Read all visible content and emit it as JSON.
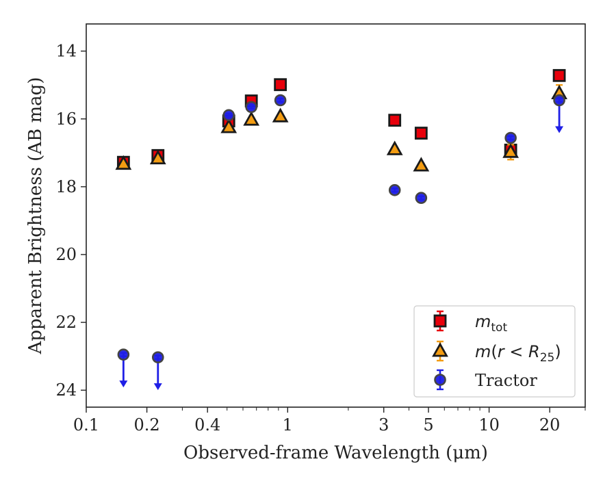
{
  "chart_data": {
    "type": "scatter",
    "xlabel": "Observed-frame Wavelength (μm)",
    "ylabel": "Apparent Brightness (AB mag)",
    "x_scale": "log",
    "xlim": [
      0.1,
      30
    ],
    "ylim": [
      24.5,
      13.2
    ],
    "y_inverted": true,
    "x_ticks": [
      0.1,
      0.2,
      0.4,
      1,
      3,
      5,
      10,
      20
    ],
    "x_tick_labels": [
      "0.1",
      "0.2",
      "0.4",
      "1",
      "3",
      "5",
      "10",
      "20"
    ],
    "y_ticks": [
      14,
      16,
      18,
      20,
      22,
      24
    ],
    "y_tick_labels": [
      "14",
      "16",
      "18",
      "20",
      "22",
      "24"
    ],
    "grid": false,
    "legend_position": "bottom-right",
    "series": [
      {
        "name": "m_tot",
        "legend_main": "m",
        "legend_sub": "tot",
        "marker": "square",
        "color": "#e8000b",
        "edge": "#1a1a1a",
        "points": [
          {
            "x": 0.153,
            "y": 17.28,
            "err": 0.05
          },
          {
            "x": 0.227,
            "y": 17.08,
            "err": 0.05
          },
          {
            "x": 0.51,
            "y": 16.06,
            "err": 0.08
          },
          {
            "x": 0.66,
            "y": 15.47,
            "err": 0.08
          },
          {
            "x": 0.92,
            "y": 14.99,
            "err": 0.05
          },
          {
            "x": 3.4,
            "y": 16.04,
            "err": 0.05
          },
          {
            "x": 4.6,
            "y": 16.42,
            "err": 0.05
          },
          {
            "x": 12.8,
            "y": 16.92,
            "err": 0.08
          },
          {
            "x": 22.3,
            "y": 14.72,
            "err": 0.05
          }
        ]
      },
      {
        "name": "m(r < R25)",
        "legend_main": "m(r < R",
        "legend_sub": "25",
        "legend_close": ")",
        "marker": "triangle",
        "color": "#f39c12",
        "edge": "#1a1a1a",
        "points": [
          {
            "x": 0.153,
            "y": 17.33,
            "err": 0.05
          },
          {
            "x": 0.227,
            "y": 17.17,
            "err": 0.05
          },
          {
            "x": 0.51,
            "y": 16.25,
            "err": 0.06
          },
          {
            "x": 0.66,
            "y": 16.03,
            "err": 0.05
          },
          {
            "x": 0.92,
            "y": 15.93,
            "err": 0.05
          },
          {
            "x": 3.4,
            "y": 16.9,
            "err": 0.05
          },
          {
            "x": 4.6,
            "y": 17.38,
            "err": 0.05
          },
          {
            "x": 12.8,
            "y": 16.98,
            "err": 0.22
          },
          {
            "x": 22.3,
            "y": 15.25,
            "err": 0.25
          }
        ]
      },
      {
        "name": "Tractor",
        "legend_main": "Tractor",
        "marker": "circle",
        "color": "#1f1fe6",
        "edge": "#444444",
        "points": [
          {
            "x": 0.153,
            "y": 22.95,
            "err": 0.05,
            "upper_limit": true
          },
          {
            "x": 0.227,
            "y": 23.03,
            "err": 0.05,
            "upper_limit": true
          },
          {
            "x": 0.51,
            "y": 15.89,
            "err": 0.05
          },
          {
            "x": 0.66,
            "y": 15.65,
            "err": 0.05
          },
          {
            "x": 0.92,
            "y": 15.45,
            "err": 0.05
          },
          {
            "x": 3.4,
            "y": 18.1,
            "err": 0.05
          },
          {
            "x": 4.6,
            "y": 18.33,
            "err": 0.05
          },
          {
            "x": 12.8,
            "y": 16.56,
            "err": 0.05
          },
          {
            "x": 22.3,
            "y": 15.45,
            "err": 0.05,
            "upper_limit": true
          }
        ]
      }
    ]
  }
}
